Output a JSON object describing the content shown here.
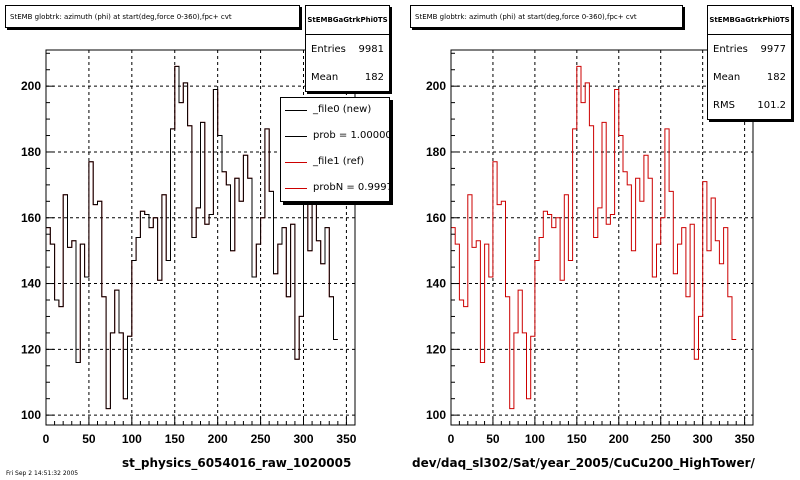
{
  "panels": [
    {
      "title": "StEMB globtrk: azimuth (phi) at start(deg,force 0-360),fpc+ cvt",
      "stats": {
        "name": "StEMBGaGtrkPhi0TS",
        "rows": [
          {
            "label": "Entries",
            "value": "9981"
          },
          {
            "label": "Mean",
            "value": "182"
          }
        ]
      },
      "caption": "st_physics_6054016_raw_1020005",
      "legend": [
        {
          "label": "_file0 (new)",
          "color": "#000000"
        },
        {
          "label": "prob = 1.000000",
          "color": "#000000"
        },
        {
          "label": "_file1 (ref)",
          "color": "#cc0000"
        },
        {
          "label": "probN = 0.999747",
          "color": "#cc0000"
        }
      ]
    },
    {
      "title": "StEMB globtrk: azimuth (phi) at start(deg,force 0-360),fpc+ cvt",
      "stats": {
        "name": "StEMBGaGtrkPhi0TS",
        "rows": [
          {
            "label": "Entries",
            "value": "9977"
          },
          {
            "label": "Mean",
            "value": "182"
          },
          {
            "label": "RMS",
            "value": "101.2"
          }
        ]
      },
      "caption": "dev/daq_sl302/Sat/year_2005/CuCu200_HighTower/",
      "legend": []
    }
  ],
  "corner_text": "Fri Sep  2 14:51:32 2005",
  "chart_data": [
    {
      "type": "histogram",
      "title": "StEMB globtrk: azimuth (phi) at start(deg,force 0-360),fpc+ cvt",
      "xlim": [
        0,
        360
      ],
      "ylim": [
        97,
        211
      ],
      "xticks": [
        0,
        50,
        100,
        150,
        200,
        250,
        300,
        350
      ],
      "yticks": [
        100,
        120,
        140,
        160,
        180,
        200
      ],
      "grid": true,
      "bin_width": 5,
      "series": [
        {
          "name": "_file1 (ref)",
          "color": "#cc0000",
          "values": [
            157,
            152,
            135,
            133,
            167,
            151,
            153,
            116,
            152,
            142,
            177,
            164,
            165,
            136,
            102,
            125,
            138,
            125,
            105,
            124,
            147,
            154,
            162,
            161,
            157,
            160,
            141,
            167,
            147,
            187,
            206,
            195,
            201,
            188,
            154,
            163,
            189,
            158,
            161,
            199,
            185,
            174,
            170,
            150,
            172,
            165,
            179,
            172,
            142,
            152,
            160,
            187,
            168,
            143,
            152,
            157,
            136,
            158,
            117,
            130,
            171,
            150,
            166,
            153,
            146,
            157,
            136,
            123
          ]
        },
        {
          "name": "_file0 (new)",
          "color": "#000000",
          "values": [
            157,
            152,
            135,
            133,
            167,
            151,
            153,
            116,
            152,
            142,
            177,
            164,
            165,
            136,
            102,
            125,
            138,
            125,
            105,
            124,
            147,
            154,
            162,
            161,
            157,
            160,
            141,
            167,
            147,
            187,
            206,
            195,
            201,
            188,
            154,
            163,
            189,
            158,
            161,
            199,
            185,
            174,
            170,
            150,
            172,
            165,
            179,
            172,
            142,
            152,
            160,
            187,
            168,
            143,
            152,
            157,
            136,
            158,
            117,
            130,
            171,
            150,
            166,
            153,
            146,
            157,
            136,
            123
          ]
        }
      ]
    },
    {
      "type": "histogram",
      "title": "StEMB globtrk: azimuth (phi) at start(deg,force 0-360),fpc+ cvt",
      "xlim": [
        0,
        360
      ],
      "ylim": [
        97,
        211
      ],
      "xticks": [
        0,
        50,
        100,
        150,
        200,
        250,
        300,
        350
      ],
      "yticks": [
        100,
        120,
        140,
        160,
        180,
        200
      ],
      "grid": true,
      "bin_width": 5,
      "series": [
        {
          "name": "_file1 (ref)",
          "color": "#cc0000",
          "values": [
            157,
            152,
            135,
            133,
            167,
            151,
            153,
            116,
            152,
            142,
            177,
            164,
            165,
            136,
            102,
            125,
            138,
            125,
            105,
            124,
            147,
            154,
            162,
            161,
            157,
            160,
            141,
            167,
            147,
            187,
            206,
            195,
            201,
            188,
            154,
            163,
            189,
            158,
            161,
            199,
            185,
            174,
            170,
            150,
            172,
            165,
            179,
            172,
            142,
            152,
            160,
            187,
            168,
            143,
            152,
            157,
            136,
            158,
            117,
            130,
            171,
            150,
            166,
            153,
            146,
            157,
            136,
            123
          ]
        }
      ]
    }
  ]
}
